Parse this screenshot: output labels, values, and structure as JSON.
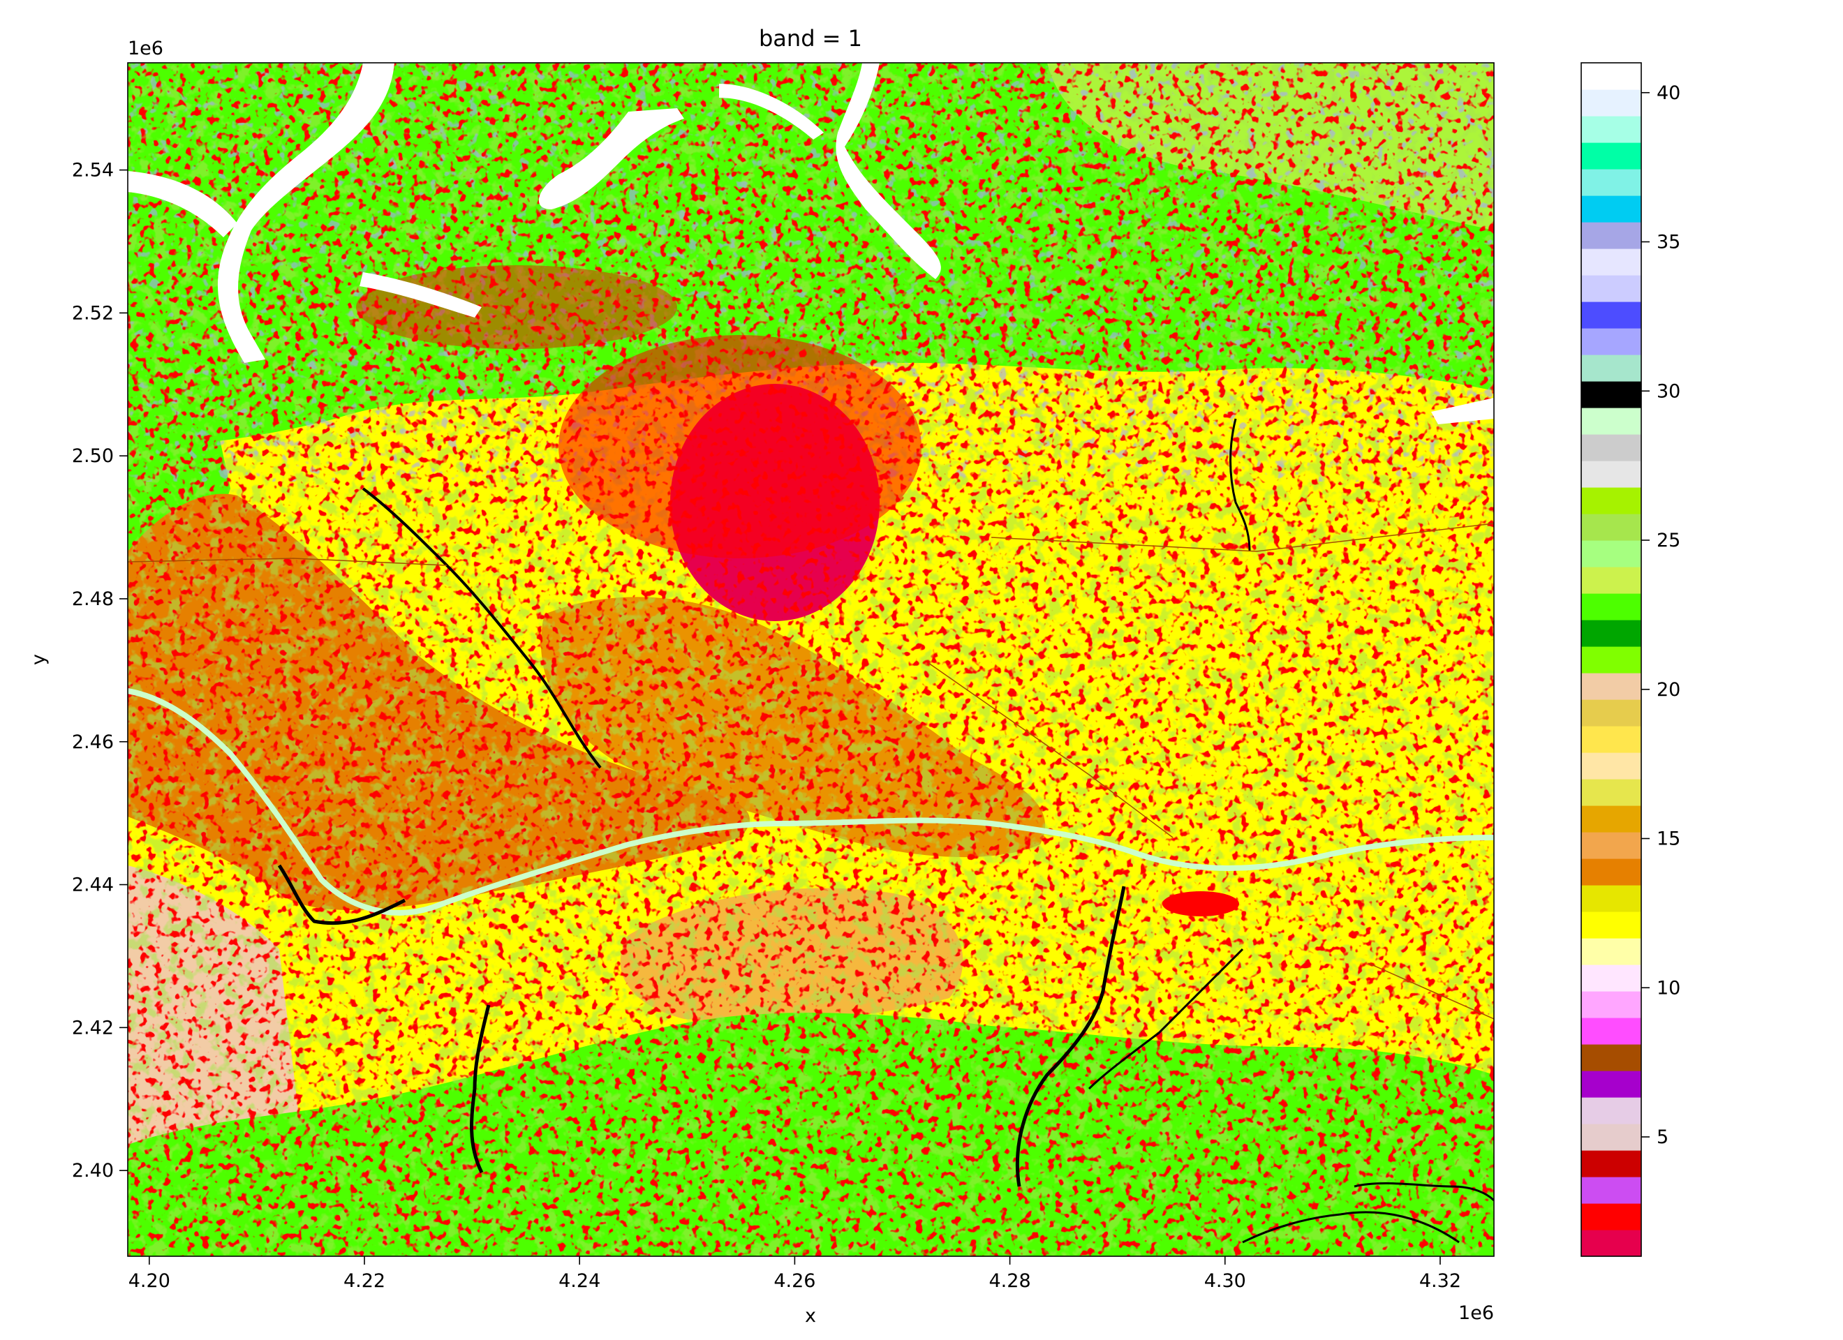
{
  "chart_data": {
    "type": "heatmap",
    "title": "band = 1",
    "xlabel": "x",
    "ylabel": "y",
    "x_offset_label": "1e6",
    "y_offset_label": "1e6",
    "xlim": [
      4.198,
      4.325
    ],
    "ylim": [
      2.388,
      2.555
    ],
    "x_ticks": [
      4.2,
      4.22,
      4.24,
      4.26,
      4.28,
      4.3,
      4.32
    ],
    "x_tick_labels": [
      "4.20",
      "4.22",
      "4.24",
      "4.26",
      "4.28",
      "4.30",
      "4.32"
    ],
    "y_ticks": [
      2.4,
      2.42,
      2.44,
      2.46,
      2.48,
      2.5,
      2.52,
      2.54
    ],
    "y_tick_labels": [
      "2.40",
      "2.42",
      "2.44",
      "2.46",
      "2.48",
      "2.50",
      "2.52",
      "2.54"
    ],
    "colorbar": {
      "range": [
        1,
        41
      ],
      "ticks": [
        5,
        10,
        15,
        20,
        25,
        30,
        35,
        40
      ],
      "tick_labels": [
        "5",
        "10",
        "15",
        "20",
        "25",
        "30",
        "35",
        "40"
      ],
      "colors": [
        "#e6004d",
        "#ff0000",
        "#cc4df2",
        "#cc0000",
        "#e6cccc",
        "#e6cce6",
        "#a600cc",
        "#a64d00",
        "#ff4dff",
        "#ffa6ff",
        "#ffe6ff",
        "#ffffa8",
        "#ffff00",
        "#e6e600",
        "#e68000",
        "#f2a64d",
        "#e6a600",
        "#e6e64d",
        "#ffe6a6",
        "#ffe64d",
        "#e6cc4d",
        "#f2cca6",
        "#80ff00",
        "#00a600",
        "#4dff00",
        "#ccf24d",
        "#a6ff80",
        "#a6e64d",
        "#a6f200",
        "#e6e6e6",
        "#cccccc",
        "#ccffcc",
        "#000000",
        "#a6e6cc",
        "#a6a6ff",
        "#4d4dff",
        "#ccccff",
        "#e6e6ff",
        "#a6a6e6",
        "#00ccf2",
        "#80f2e6",
        "#00ffa6",
        "#a6ffe6",
        "#e6f2ff",
        "#ffffff"
      ]
    },
    "map_description_colors": {
      "urban": "#ff0000",
      "urban_dense": "#e6004d",
      "forest": "#4dff00",
      "arable": "#ffff00",
      "orchard": "#e68000",
      "water": "#ffffff",
      "river": "#000000",
      "pasture": "#a6e64d",
      "vineyard": "#f2a64d",
      "sparse": "#a6a6ff"
    }
  }
}
